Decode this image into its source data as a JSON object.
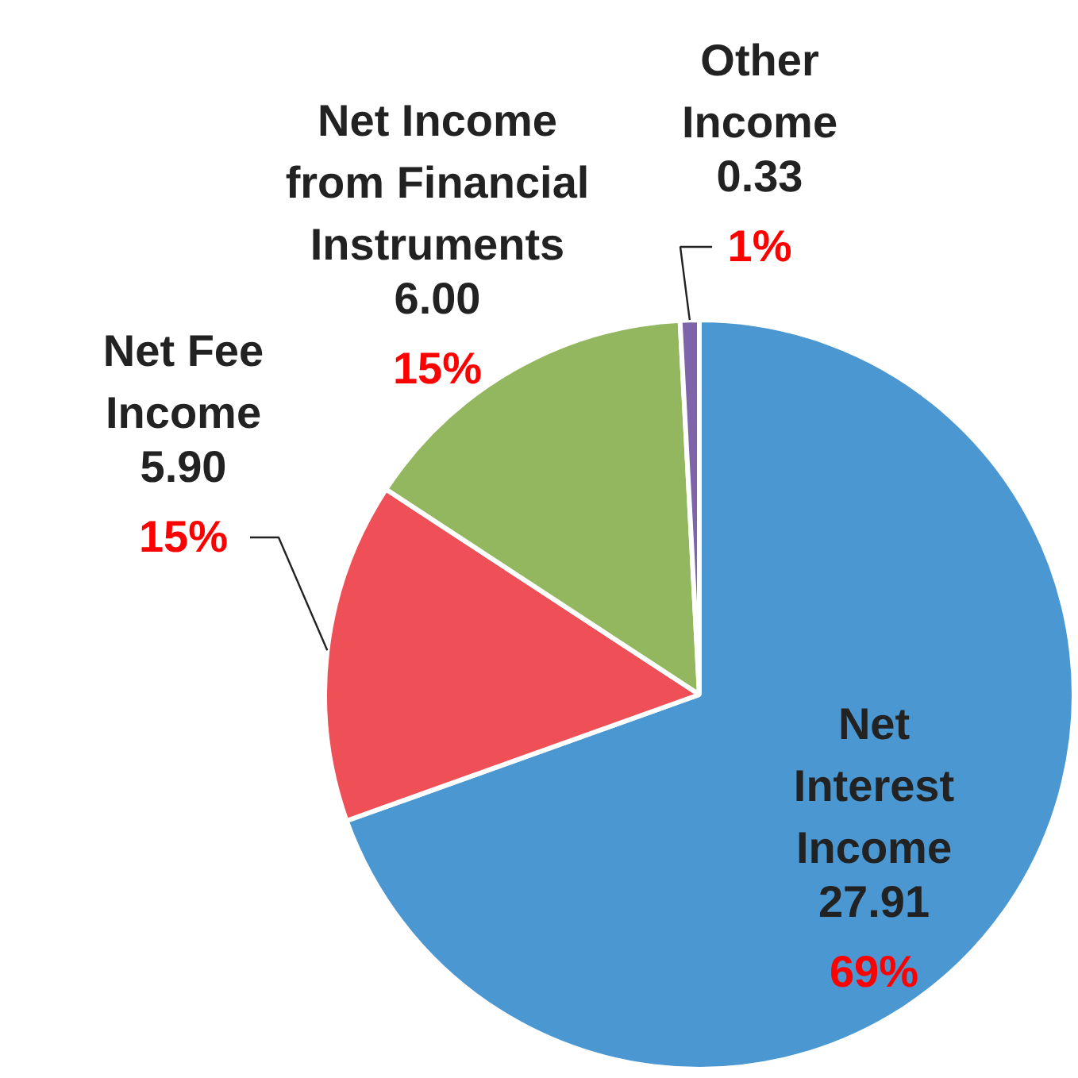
{
  "chart_data": {
    "type": "pie",
    "categories": [
      "Net\nInterest\nIncome",
      "Net Fee\nIncome",
      "Net Income\nfrom Financial\nInstruments",
      "Other\nIncome"
    ],
    "values": [
      27.91,
      5.9,
      6.0,
      0.33
    ],
    "colors": [
      "#4a97d2",
      "#ef5058",
      "#93b75e",
      "#8064a9"
    ],
    "value_labels": [
      "27.91\n69%",
      "5.90\n15%",
      "6.00\n15%",
      "0.33\n1%"
    ]
  }
}
